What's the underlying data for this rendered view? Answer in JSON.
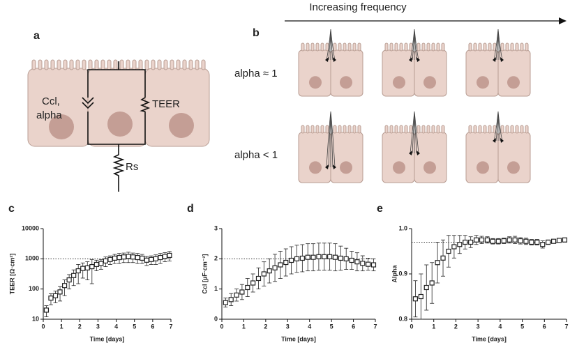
{
  "panels": {
    "a": "a",
    "b": "b"
  },
  "labels": {
    "frequency": "Increasing frequency",
    "alpha_eq": "alpha ≈ 1",
    "alpha_lt": "alpha < 1",
    "ccl": "Ccl,",
    "alpha": "alpha",
    "teer": "TEER",
    "rs": "Rs"
  },
  "chart_data": [
    {
      "type": "scatter",
      "label": "c",
      "xlabel": "Time [days]",
      "ylabel": "TEER [Ω·cm²]",
      "log_y": true,
      "color": "#222",
      "reference_line": 1000,
      "xlim": [
        0,
        7
      ],
      "xticks": [
        0,
        1,
        2,
        3,
        4,
        5,
        6,
        7
      ],
      "ylim": [
        10,
        10000
      ],
      "yticks": [
        10,
        100,
        1000,
        10000
      ],
      "x": [
        0.17,
        0.42,
        0.67,
        0.92,
        1.17,
        1.42,
        1.67,
        1.92,
        2.17,
        2.42,
        2.67,
        2.92,
        3.17,
        3.42,
        3.67,
        3.92,
        4.17,
        4.42,
        4.67,
        4.92,
        5.17,
        5.42,
        5.67,
        5.92,
        6.17,
        6.42,
        6.67,
        6.92
      ],
      "values": [
        20,
        50,
        60,
        80,
        130,
        200,
        280,
        400,
        480,
        500,
        550,
        650,
        700,
        850,
        950,
        1050,
        1100,
        1150,
        1200,
        1150,
        1100,
        1050,
        900,
        950,
        1000,
        1100,
        1200,
        1300
      ],
      "errors": [
        8,
        20,
        25,
        40,
        70,
        100,
        150,
        250,
        250,
        300,
        400,
        250,
        250,
        300,
        300,
        350,
        400,
        400,
        450,
        400,
        400,
        350,
        300,
        300,
        350,
        400,
        400,
        450
      ]
    },
    {
      "type": "scatter",
      "label": "d",
      "xlabel": "Time [days]",
      "ylabel": "Ccl [µF·cm⁻²]",
      "log_y": false,
      "color": "#222",
      "reference_line": 2,
      "xlim": [
        0,
        7
      ],
      "xticks": [
        0,
        1,
        2,
        3,
        4,
        5,
        6,
        7
      ],
      "ylim": [
        0,
        3
      ],
      "yticks": [
        0,
        1,
        2,
        3
      ],
      "x": [
        0.17,
        0.42,
        0.67,
        0.92,
        1.17,
        1.42,
        1.67,
        1.92,
        2.17,
        2.42,
        2.67,
        2.92,
        3.17,
        3.42,
        3.67,
        3.92,
        4.17,
        4.42,
        4.67,
        4.92,
        5.17,
        5.42,
        5.67,
        5.92,
        6.17,
        6.42,
        6.67,
        6.92
      ],
      "values": [
        0.55,
        0.65,
        0.8,
        0.9,
        1.05,
        1.2,
        1.35,
        1.5,
        1.6,
        1.7,
        1.8,
        1.88,
        1.95,
        2.0,
        2.02,
        2.05,
        2.05,
        2.07,
        2.07,
        2.07,
        2.05,
        2.02,
        2.0,
        1.95,
        1.9,
        1.85,
        1.82,
        1.8
      ],
      "errors": [
        0.15,
        0.2,
        0.2,
        0.25,
        0.3,
        0.3,
        0.35,
        0.4,
        0.4,
        0.45,
        0.45,
        0.45,
        0.45,
        0.45,
        0.45,
        0.45,
        0.45,
        0.45,
        0.45,
        0.45,
        0.45,
        0.4,
        0.35,
        0.3,
        0.3,
        0.25,
        0.2,
        0.2
      ]
    },
    {
      "type": "scatter",
      "label": "e",
      "xlabel": "Time [days]",
      "ylabel": "Alpha",
      "log_y": false,
      "color": "#222",
      "reference_line": 0.97,
      "xlim": [
        0,
        7
      ],
      "xticks": [
        0,
        1,
        2,
        3,
        4,
        5,
        6,
        7
      ],
      "ylim": [
        0.8,
        1.0
      ],
      "yticks": [
        0.8,
        0.9,
        {
          "value": 1.0,
          "label": "1.0"
        }
      ],
      "x": [
        0.17,
        0.42,
        0.67,
        0.92,
        1.17,
        1.42,
        1.67,
        1.92,
        2.17,
        2.42,
        2.67,
        2.92,
        3.17,
        3.42,
        3.67,
        3.92,
        4.17,
        4.42,
        4.67,
        4.92,
        5.17,
        5.42,
        5.67,
        5.92,
        6.17,
        6.42,
        6.67,
        6.92
      ],
      "values": [
        0.845,
        0.85,
        0.87,
        0.88,
        0.925,
        0.935,
        0.95,
        0.96,
        0.965,
        0.97,
        0.97,
        0.975,
        0.975,
        0.975,
        0.972,
        0.972,
        0.973,
        0.975,
        0.975,
        0.973,
        0.972,
        0.97,
        0.97,
        0.965,
        0.97,
        0.972,
        0.974,
        0.975
      ],
      "errors": [
        0.04,
        0.05,
        0.05,
        0.045,
        0.045,
        0.04,
        0.035,
        0.025,
        0.02,
        0.015,
        0.012,
        0.01,
        0.008,
        0.007,
        0.006,
        0.006,
        0.006,
        0.007,
        0.008,
        0.007,
        0.007,
        0.006,
        0.006,
        0.008,
        0.005,
        0.004,
        0.004,
        0.003
      ]
    }
  ]
}
